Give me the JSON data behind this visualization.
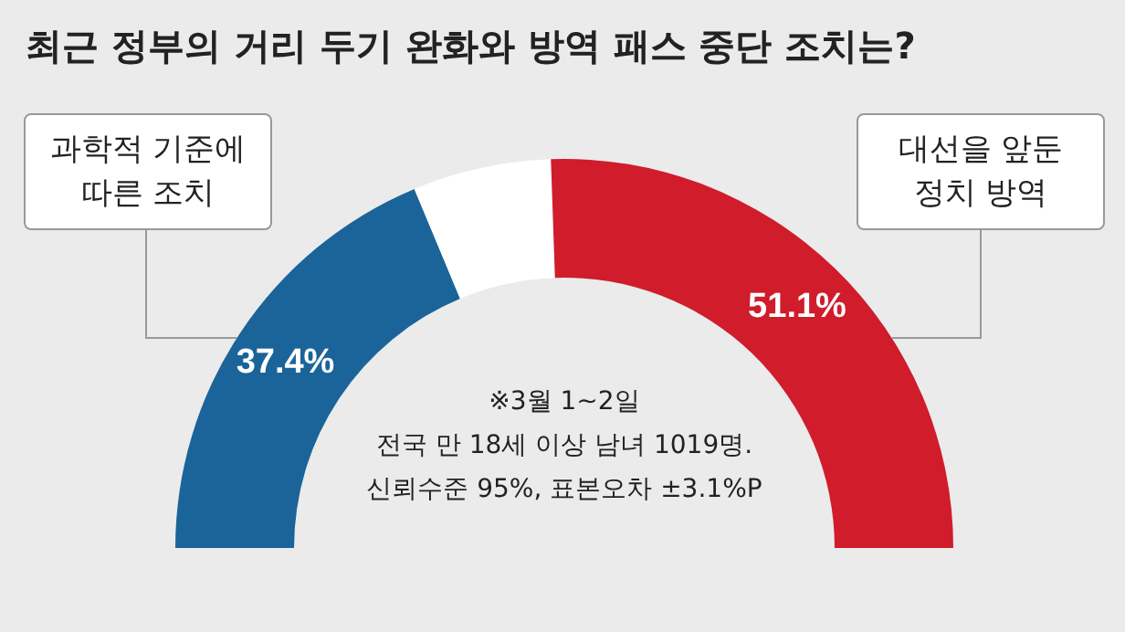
{
  "chart_data": {
    "type": "donut",
    "title": "최근 정부의 거리 두기 완화와 방역 패스 중단 조치는?",
    "categories": [
      "과학적 기준에\n따른 조치",
      null,
      "대선을 앞둔\n정치 방역"
    ],
    "values": [
      37.4,
      11.5,
      51.1
    ],
    "colors": [
      "#1a6499",
      "#ffffff",
      "#d01c2b"
    ],
    "value_labels": [
      "37.4%",
      null,
      "51.1%"
    ],
    "annotations": [
      "※3월 1~2일",
      "전국 만 18세 이상 남녀 1019명.",
      "신뢰수준 95%, 표본오차  ±3.1%P"
    ]
  }
}
